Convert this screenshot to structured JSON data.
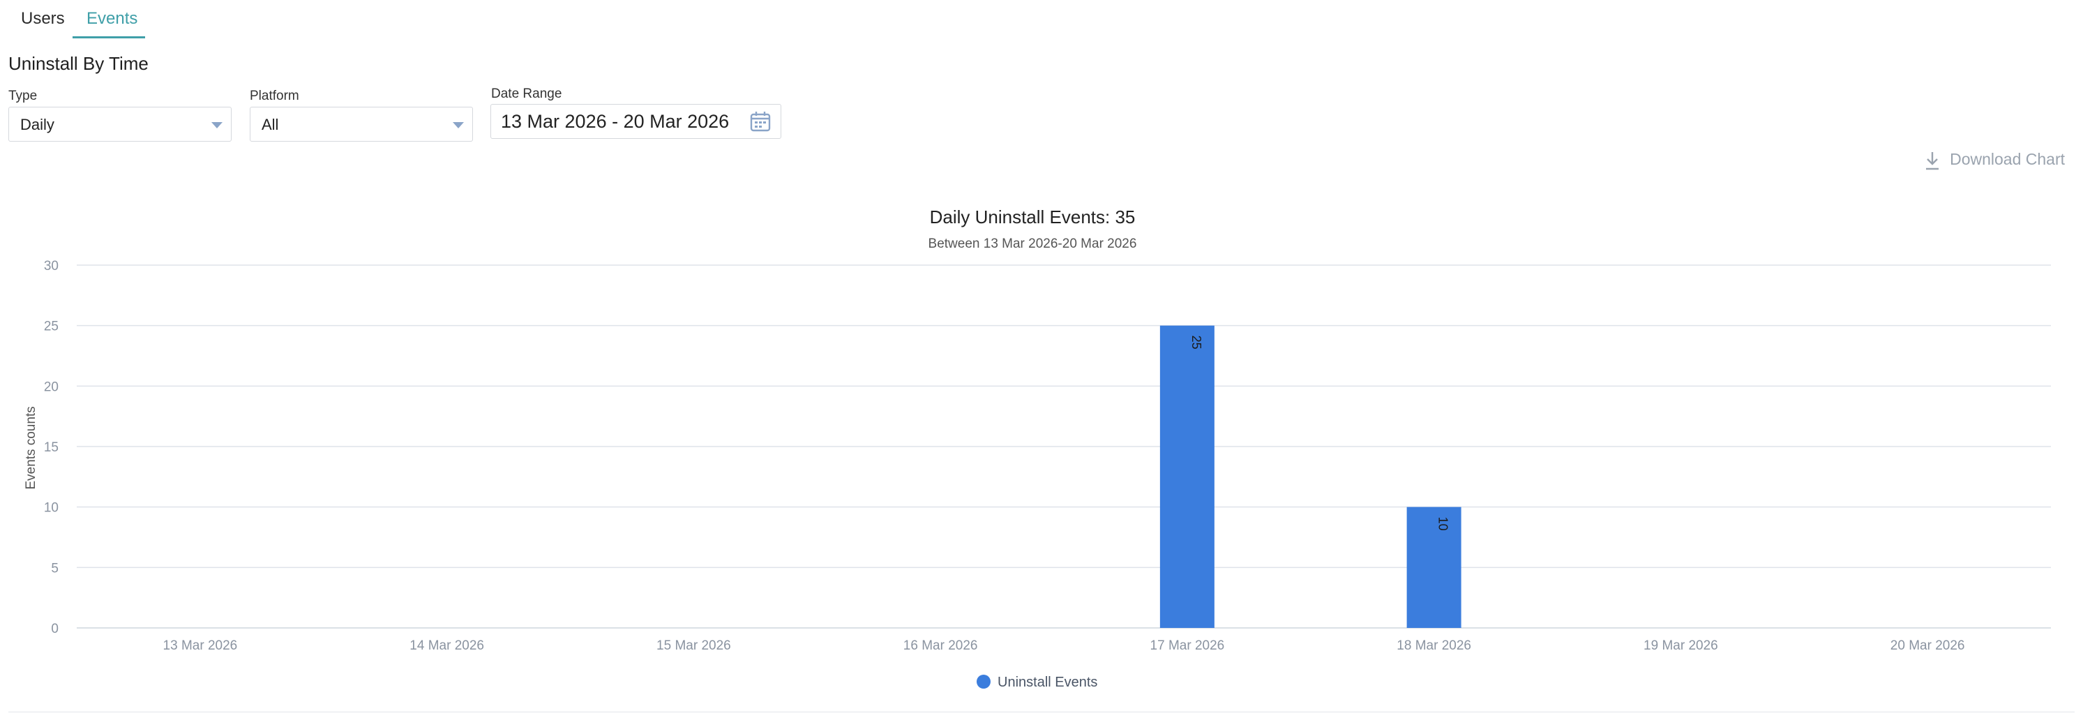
{
  "tabs": [
    {
      "label": "Users",
      "active": false
    },
    {
      "label": "Events",
      "active": true
    }
  ],
  "section_title": "Uninstall By Time",
  "filters": {
    "type": {
      "label": "Type",
      "value": "Daily"
    },
    "platform": {
      "label": "Platform",
      "value": "All"
    },
    "date_range": {
      "label": "Date Range",
      "value": "13 Mar 2026 - 20 Mar 2026"
    }
  },
  "download_label": "Download Chart",
  "icons": {
    "download": "download-icon",
    "calendar": "calendar-icon",
    "dropdown": "chevron-down-icon"
  },
  "colors": {
    "accent": "#3f9fa8",
    "bar": "#3b7ddd",
    "grid": "#dfe3ea",
    "axis_text": "#8a93a0"
  },
  "chart_data": {
    "type": "bar",
    "title": "Daily Uninstall Events: 35",
    "subtitle": "Between 13 Mar 2026-20 Mar 2026",
    "ylabel": "Events counts",
    "xlabel": "",
    "categories": [
      "13 Mar 2026",
      "14 Mar 2026",
      "15 Mar 2026",
      "16 Mar 2026",
      "17 Mar 2026",
      "18 Mar 2026",
      "19 Mar 2026",
      "20 Mar 2026"
    ],
    "series": [
      {
        "name": "Uninstall Events",
        "values": [
          0,
          0,
          0,
          0,
          25,
          10,
          0,
          0
        ]
      }
    ],
    "ylim": [
      0,
      30
    ],
    "yticks": [
      0,
      5,
      10,
      15,
      20,
      25,
      30
    ],
    "grid": true,
    "legend": "bottom-center",
    "data_labels": true
  }
}
